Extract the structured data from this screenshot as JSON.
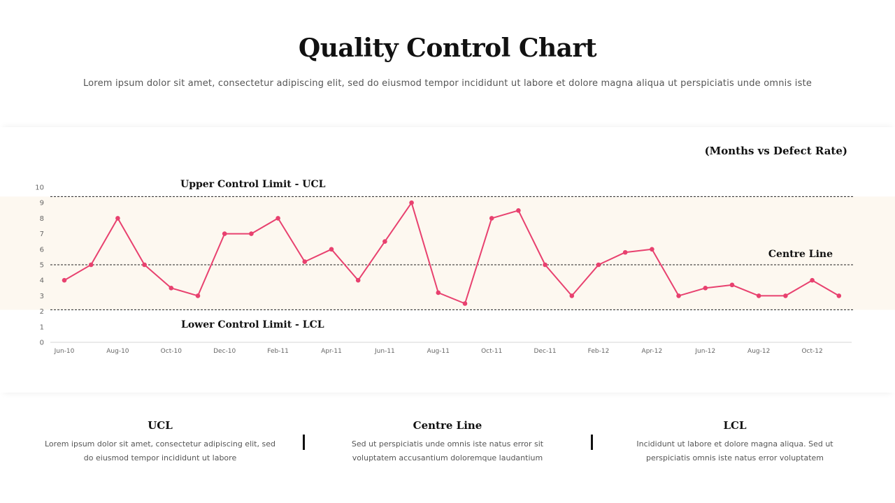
{
  "header": {
    "title": "Quality Control Chart",
    "subtitle": "Lorem ipsum dolor sit amet, consectetur adipiscing elit, sed do eiusmod tempor incididunt ut labore et dolore magna aliqua ut perspiciatis unde omnis iste"
  },
  "chart_data": {
    "type": "line",
    "subtitle": "(Months vs Defect Rate)",
    "x": [
      "Jun-10",
      "Jul-10",
      "Aug-10",
      "Sep-10",
      "Oct-10",
      "Nov-10",
      "Dec-10",
      "Jan-11",
      "Feb-11",
      "Mar-11",
      "Apr-11",
      "May-11",
      "Jun-11",
      "Jul-11",
      "Aug-11",
      "Sep-11",
      "Oct-11",
      "Nov-11",
      "Dec-11",
      "Jan-12",
      "Feb-12",
      "Mar-12",
      "Apr-12",
      "May-12",
      "Jun-12",
      "Jul-12",
      "Aug-12",
      "Sep-12",
      "Oct-12",
      "Nov-12"
    ],
    "tick_labels": [
      "Jun-10",
      "Aug-10",
      "Oct-10",
      "Dec-10",
      "Feb-11",
      "Apr-11",
      "Jun-11",
      "Aug-11",
      "Oct-11",
      "Dec-11",
      "Feb-12",
      "Apr-12",
      "Jun-12",
      "Aug-12",
      "Oct-12"
    ],
    "series": [
      {
        "values": [
          4,
          5,
          8,
          5,
          3.5,
          3,
          7,
          7,
          8,
          5.2,
          6,
          4,
          6.5,
          9,
          3.2,
          2.5,
          8,
          8.5,
          5,
          3,
          5,
          5.8,
          6,
          3,
          3.5,
          3.7,
          3,
          3,
          4,
          3
        ]
      }
    ],
    "ylim": [
      0,
      10
    ],
    "yticks": [
      0,
      1,
      2,
      3,
      4,
      5,
      6,
      7,
      8,
      9,
      10
    ],
    "ucl": 9.4,
    "centre_line": 5,
    "lcl": 2.1,
    "annotations": {
      "ucl": "Upper Control Limit - UCL",
      "centre": "Centre Line",
      "lcl": "Lower Control Limit - LCL"
    },
    "grid": false,
    "legend": "none",
    "colors": {
      "line": "#e8416f",
      "band": "#fdf8f0",
      "limit_line": "#222222"
    }
  },
  "footer": {
    "columns": [
      {
        "title": "UCL",
        "text": "Lorem ipsum dolor sit amet, consectetur adipiscing elit, sed do eiusmod tempor incididunt ut labore"
      },
      {
        "title": "Centre Line",
        "text": "Sed ut perspiciatis unde omnis iste natus error sit voluptatem accusantium doloremque laudantium"
      },
      {
        "title": "LCL",
        "text": "Incididunt ut labore et dolore magna aliqua. Sed ut perspiciatis omnis iste natus error voluptatem"
      }
    ]
  }
}
